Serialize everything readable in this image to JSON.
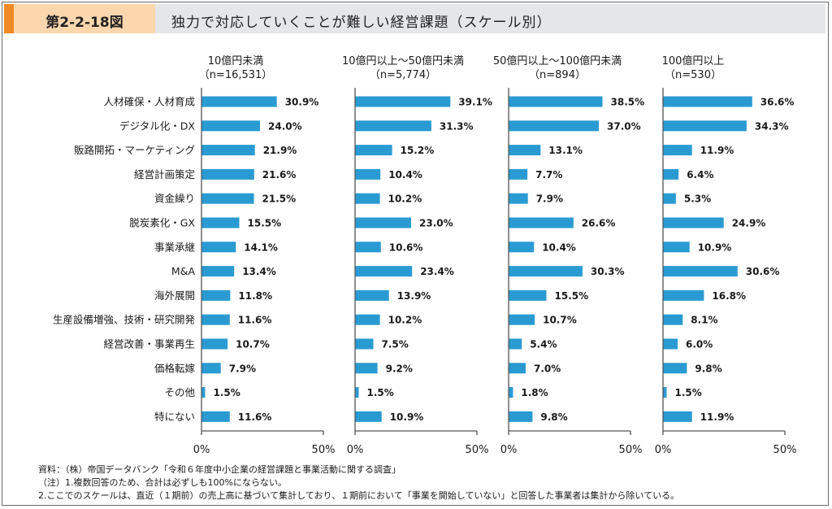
{
  "header": {
    "figure_number": "第2-2-18図",
    "title": "独力で対応していくことが難しい経営課題（スケール別）"
  },
  "colors": {
    "bar": "#2a9bd2",
    "accent": "#f08a24",
    "figure_number_bg": "#fcd6ad",
    "title_bg": "#e5e6e8"
  },
  "chart_data": {
    "type": "bar",
    "orientation": "horizontal",
    "title": "独力で対応していくことが難しい経営課題（スケール別）",
    "xlabel": "",
    "ylabel": "",
    "xlim": [
      0,
      50
    ],
    "tick_labels": [
      "0%",
      "50%"
    ],
    "grid": false,
    "legend": "none",
    "categories": [
      "人材確保・人材育成",
      "デジタル化・DX",
      "販路開拓・マーケティング",
      "経営計画策定",
      "資金繰り",
      "脱炭素化・GX",
      "事業承継",
      "M&A",
      "海外展開",
      "生産設備増強、技術・研究開発",
      "経営改善・事業再生",
      "価格転嫁",
      "その他",
      "特にない"
    ],
    "series": [
      {
        "name": "10億円未満",
        "n_label": "（n=16,531）",
        "values": [
          30.9,
          24.0,
          21.9,
          21.6,
          21.5,
          15.5,
          14.1,
          13.4,
          11.8,
          11.6,
          10.7,
          7.9,
          1.5,
          11.6
        ]
      },
      {
        "name": "10億円以上～50億円未満",
        "n_label": "（n=5,774）",
        "values": [
          39.1,
          31.3,
          15.2,
          10.4,
          10.2,
          23.0,
          10.6,
          23.4,
          13.9,
          10.2,
          7.5,
          9.2,
          1.5,
          10.9
        ]
      },
      {
        "name": "50億円以上～100億円未満",
        "n_label": "（n=894）",
        "values": [
          38.5,
          37.0,
          13.1,
          7.7,
          7.9,
          26.6,
          10.4,
          30.3,
          15.5,
          10.7,
          5.4,
          7.0,
          1.8,
          9.8
        ]
      },
      {
        "name": "100億円以上",
        "n_label": "（n=530）",
        "values": [
          36.6,
          34.3,
          11.9,
          6.4,
          5.3,
          24.9,
          10.9,
          30.6,
          16.8,
          8.1,
          6.0,
          9.8,
          1.5,
          11.9
        ]
      }
    ]
  },
  "notes": [
    "資料：（株）帝国データバンク「令和６年度中小企業の経営課題と事業活動に関する調査」",
    "（注）1.複数回答のため、合計は必ずしも100%にならない。",
    "2.ここでのスケールは、直近（１期前）の売上高に基づいて集計しており、１期前において「事業を開始していない」と回答した事業者は集計から除いている。"
  ]
}
